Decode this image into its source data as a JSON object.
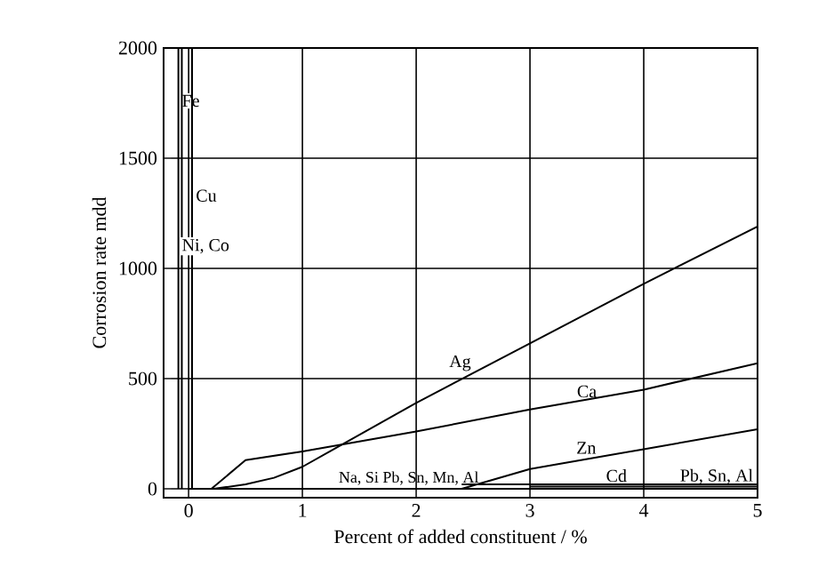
{
  "chart_data": {
    "type": "line",
    "xlabel": "Percent of added constituent / %",
    "ylabel": "Corrosion rate mdd",
    "xlim": [
      -0.22,
      5
    ],
    "ylim": [
      -40,
      2000
    ],
    "xticks": [
      0,
      1,
      2,
      3,
      4,
      5
    ],
    "yticks": [
      0,
      500,
      1000,
      1500,
      2000
    ],
    "grid": true,
    "series": [
      {
        "name": "Fe",
        "color": "#000000",
        "x": [
          -0.09,
          -0.09
        ],
        "values": [
          0,
          2000
        ]
      },
      {
        "name": "Cu",
        "color": "#000000",
        "x": [
          0.03,
          0.03
        ],
        "values": [
          0,
          2000
        ]
      },
      {
        "name": "Ni, Co",
        "color": "#000000",
        "x": [
          -0.06,
          -0.06
        ],
        "values": [
          0,
          2000
        ]
      },
      {
        "name": "Ag",
        "color": "#000000",
        "x": [
          0.22,
          0.5,
          0.75,
          1,
          2,
          3,
          4,
          5
        ],
        "values": [
          0,
          20,
          50,
          100,
          390,
          660,
          930,
          1190
        ]
      },
      {
        "name": "Ca",
        "color": "#000000",
        "x": [
          0.2,
          0.5,
          1,
          2,
          3,
          4,
          5
        ],
        "values": [
          0,
          130,
          170,
          260,
          360,
          450,
          570
        ]
      },
      {
        "name": "Na, Si Pb, Sn, Mn, Al",
        "color": "#000000",
        "x": [
          0,
          5
        ],
        "values": [
          0,
          0
        ]
      },
      {
        "name": "Zn",
        "color": "#000000",
        "x": [
          2.4,
          3,
          4,
          5
        ],
        "values": [
          0,
          90,
          180,
          270
        ]
      },
      {
        "name": "Cd",
        "color": "#000000",
        "x": [
          2.4,
          5
        ],
        "values": [
          20,
          20
        ]
      },
      {
        "name": "Pb, Sn, Al",
        "color": "#000000",
        "x": [
          3,
          5
        ],
        "values": [
          10,
          10
        ]
      }
    ]
  }
}
